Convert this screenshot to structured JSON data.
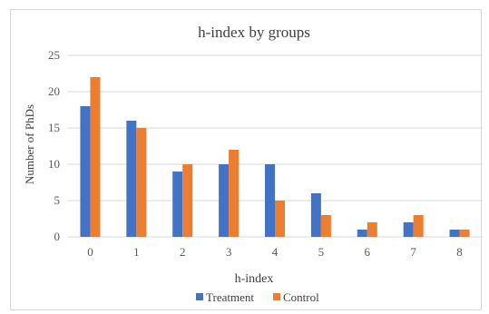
{
  "chart_data": {
    "type": "bar",
    "title": "h-index by groups",
    "xlabel": "h-index",
    "ylabel": "Number of PhDs",
    "categories": [
      "0",
      "1",
      "2",
      "3",
      "4",
      "5",
      "6",
      "7",
      "8"
    ],
    "series": [
      {
        "name": "Treatment",
        "color": "#4472c4",
        "values": [
          18,
          16,
          9,
          10,
          10,
          6,
          1,
          2,
          1
        ]
      },
      {
        "name": "Control",
        "color": "#ed7d31",
        "values": [
          22,
          15,
          10,
          12,
          5,
          3,
          2,
          3,
          1
        ]
      }
    ],
    "ylim": [
      0,
      25
    ],
    "yticks": [
      "0",
      "5",
      "10",
      "15",
      "20",
      "25"
    ],
    "grid": true,
    "legend": "bottom"
  }
}
